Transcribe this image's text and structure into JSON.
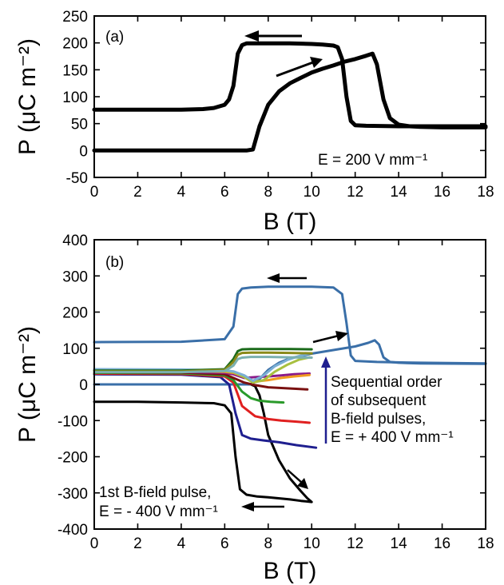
{
  "chart_data": [
    {
      "type": "line",
      "panel_label": "(a)",
      "xlabel": "B (T)",
      "ylabel": "P (μC m⁻²)",
      "xlim": [
        0,
        18
      ],
      "ylim": [
        -50,
        250
      ],
      "xticks": [
        0,
        2,
        4,
        6,
        8,
        10,
        12,
        14,
        16,
        18
      ],
      "yticks": [
        -50,
        0,
        50,
        100,
        150,
        200,
        250
      ],
      "annotation": "E = 200 V mm⁻¹",
      "series": [
        {
          "color": "#000000",
          "x": [
            0,
            7.0,
            7.3,
            7.6,
            8.0,
            8.5,
            9.0,
            9.5,
            10,
            10.5,
            11,
            11.5,
            12,
            12.5,
            12.8,
            13.0,
            13.3,
            13.6,
            14.0,
            14.5,
            15,
            16,
            17,
            18
          ],
          "y": [
            0,
            0,
            2,
            45,
            85,
            110,
            125,
            135,
            145,
            152,
            158,
            165,
            170,
            176,
            180,
            160,
            95,
            60,
            48,
            45,
            44,
            43,
            43,
            43
          ]
        },
        {
          "color": "#000000",
          "x": [
            18,
            14,
            12.5,
            12.0,
            11.8,
            11.6,
            11.4,
            11.2,
            11.0,
            10.5,
            10,
            9,
            8,
            7.5,
            7.0,
            6.8,
            6.6,
            6.4,
            6.2,
            6.0,
            5.5,
            5,
            4,
            2,
            0
          ],
          "y": [
            45,
            45,
            46,
            47,
            55,
            100,
            170,
            192,
            195,
            197,
            198,
            199,
            199,
            199,
            199,
            196,
            180,
            120,
            95,
            85,
            79,
            77,
            76,
            76,
            76
          ]
        }
      ]
    },
    {
      "type": "line",
      "panel_label": "(b)",
      "xlabel": "B (T)",
      "ylabel": "P (μC m⁻²)",
      "xlim": [
        0,
        18
      ],
      "ylim": [
        -400,
        400
      ],
      "xticks": [
        0,
        2,
        4,
        6,
        8,
        10,
        12,
        14,
        16,
        18
      ],
      "yticks": [
        -400,
        -300,
        -200,
        -100,
        0,
        100,
        200,
        300,
        400
      ],
      "annotations": [
        {
          "lines": [
            "Sequential order",
            "of subsequent",
            "B-field pulses,",
            "E = + 400 V mm⁻¹"
          ]
        },
        {
          "lines": [
            "1st B-field pulse,",
            "E = - 400 V mm⁻¹"
          ]
        }
      ],
      "series": [
        {
          "color": "#000000",
          "x": [
            0,
            2,
            4,
            5.5,
            6.0,
            6.3,
            6.5,
            6.7,
            7.0,
            7.5,
            8,
            9,
            9.5,
            10.0,
            9.8,
            9.5,
            9.0,
            8.5,
            8.0,
            7.8,
            7.6,
            7.4,
            7.2
          ],
          "y": [
            -48,
            -48,
            -50,
            -52,
            -58,
            -80,
            -200,
            -290,
            -305,
            -310,
            -312,
            -318,
            -322,
            -325,
            -315,
            -295,
            -260,
            -210,
            -140,
            -80,
            -30,
            -5,
            0
          ]
        },
        {
          "color": "#3a6fa8",
          "x": [
            0,
            4,
            6.0,
            6.4,
            6.6,
            6.8,
            7.2,
            8,
            10,
            11.0,
            11.4,
            11.6,
            11.8,
            12,
            13,
            15,
            18
          ],
          "y": [
            117,
            118,
            125,
            160,
            250,
            265,
            268,
            270,
            270,
            268,
            250,
            170,
            80,
            65,
            62,
            60,
            58
          ]
        },
        {
          "color": "#3a6fa8",
          "x": [
            0,
            6,
            7.2,
            7.6,
            8,
            8.5,
            9,
            10,
            11,
            12,
            12.6,
            12.9,
            13.1,
            13.3,
            13.6,
            14,
            15,
            18
          ],
          "y": [
            0,
            0,
            0,
            15,
            40,
            60,
            72,
            85,
            95,
            105,
            115,
            122,
            110,
            75,
            62,
            60,
            58,
            57
          ]
        },
        {
          "color": "#1f1f8f",
          "x": [
            0,
            4,
            5.8,
            6.2,
            6.5,
            6.8,
            7.2,
            7.8,
            8.5,
            9.3,
            10.2
          ],
          "y": [
            28,
            27,
            20,
            0,
            -80,
            -140,
            -150,
            -155,
            -160,
            -168,
            -175
          ]
        },
        {
          "color": "#e02020",
          "x": [
            0,
            4,
            6.0,
            6.4,
            6.8,
            7.4,
            8.0,
            8.6,
            9.3,
            9.9
          ],
          "y": [
            30,
            29,
            22,
            5,
            -60,
            -88,
            -96,
            -100,
            -103,
            -106
          ]
        },
        {
          "color": "#2a9a2a",
          "x": [
            0,
            4,
            6.0,
            6.4,
            6.8,
            7.2,
            7.6,
            8.1,
            8.7
          ],
          "y": [
            32,
            31,
            25,
            12,
            -20,
            -38,
            -45,
            -48,
            -50
          ]
        },
        {
          "color": "#7a1010",
          "x": [
            0,
            4,
            6.0,
            6.4,
            6.9,
            7.4,
            8.0,
            8.6,
            9.2,
            9.8
          ],
          "y": [
            34,
            33,
            28,
            18,
            5,
            -2,
            -8,
            -10,
            -12,
            -14
          ]
        },
        {
          "color": "#8a1a8a",
          "x": [
            0,
            4,
            6.0,
            6.4,
            6.9,
            7.4,
            8.0,
            8.6,
            9.2,
            9.9
          ],
          "y": [
            36,
            35,
            32,
            28,
            18,
            20,
            22,
            25,
            28,
            30
          ]
        },
        {
          "color": "#f09a20",
          "x": [
            0,
            4,
            6.0,
            6.4,
            6.9,
            7.4,
            8.0,
            8.6,
            9.2,
            9.9
          ],
          "y": [
            38,
            37,
            35,
            32,
            20,
            8,
            12,
            18,
            22,
            26
          ]
        },
        {
          "color": "#a8c040",
          "x": [
            0,
            4,
            6.0,
            6.4,
            6.9,
            7.3,
            7.8,
            8.3,
            8.9,
            9.4,
            9.9
          ],
          "y": [
            40,
            39,
            37,
            34,
            20,
            5,
            12,
            35,
            55,
            68,
            75
          ]
        },
        {
          "color": "#7bafd4",
          "x": [
            0,
            4,
            6.0,
            6.4,
            6.9,
            7.3,
            7.8,
            8.3,
            8.9,
            9.4,
            9.9
          ],
          "y": [
            42,
            41,
            39,
            36,
            25,
            10,
            25,
            50,
            68,
            78,
            86
          ]
        },
        {
          "color": "#1a6a1a",
          "x": [
            0,
            4,
            6.0,
            6.4,
            6.6,
            6.8,
            7.2,
            8.0,
            9.0,
            10.0
          ],
          "y": [
            38,
            38,
            42,
            70,
            92,
            97,
            98,
            98,
            98,
            97
          ]
        },
        {
          "color": "#8a8a1a",
          "x": [
            0,
            4,
            6.0,
            6.4,
            6.6,
            6.8,
            7.2,
            8.0,
            9.0,
            10.0
          ],
          "y": [
            36,
            36,
            40,
            62,
            82,
            87,
            88,
            88,
            87,
            86
          ]
        },
        {
          "color": "#7ab0b0",
          "x": [
            0,
            4,
            6.0,
            6.4,
            6.6,
            6.8,
            7.2,
            8.0,
            9.0,
            10.0
          ],
          "y": [
            34,
            34,
            37,
            52,
            70,
            74,
            76,
            76,
            75,
            74
          ]
        }
      ]
    }
  ]
}
